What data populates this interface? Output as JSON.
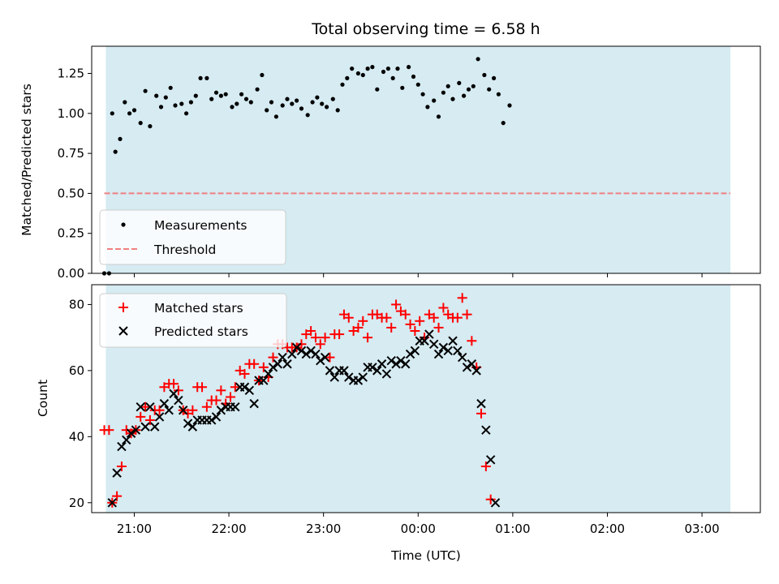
{
  "chart_data": [
    {
      "type": "scatter",
      "title": "Total observing time = 6.58 h",
      "ylabel": "Matched/Predicted stars",
      "xlabel": "",
      "ylim": [
        0,
        1.42
      ],
      "yticks": [
        0.0,
        0.25,
        0.5,
        0.75,
        1.0,
        1.25
      ],
      "yticklabels": [
        "0.00",
        "0.25",
        "0.50",
        "0.75",
        "1.00",
        "1.25"
      ],
      "xlim": [
        "20:33",
        "03:37"
      ],
      "xticks": [
        "21:00",
        "22:00",
        "23:00",
        "00:00",
        "01:00",
        "02:00",
        "03:00"
      ],
      "grid": false,
      "legend": "bottom-left",
      "observing_window": [
        "20:42",
        "03:18"
      ],
      "observing_window_color": "#add8e6",
      "threshold": {
        "name": "Threshold",
        "value": 0.5,
        "x_start": "20:41",
        "x_end": "03:18",
        "color": "#f08080",
        "style": "dashed"
      },
      "series": [
        {
          "name": "Measurements",
          "marker": "dot",
          "color": "#000000",
          "points": [
            [
              "20:41",
              0.0
            ],
            [
              "20:44",
              0.0
            ],
            [
              "20:46",
              1.0
            ],
            [
              "20:48",
              0.76
            ],
            [
              "20:51",
              0.84
            ],
            [
              "20:54",
              1.07
            ],
            [
              "20:57",
              1.0
            ],
            [
              "21:00",
              1.02
            ],
            [
              "21:04",
              0.94
            ],
            [
              "21:07",
              1.14
            ],
            [
              "21:10",
              0.92
            ],
            [
              "21:14",
              1.11
            ],
            [
              "21:17",
              1.04
            ],
            [
              "21:20",
              1.1
            ],
            [
              "21:23",
              1.16
            ],
            [
              "21:26",
              1.05
            ],
            [
              "21:30",
              1.06
            ],
            [
              "21:33",
              1.0
            ],
            [
              "21:36",
              1.07
            ],
            [
              "21:39",
              1.11
            ],
            [
              "21:42",
              1.22
            ],
            [
              "21:46",
              1.22
            ],
            [
              "21:49",
              1.09
            ],
            [
              "21:52",
              1.13
            ],
            [
              "21:55",
              1.11
            ],
            [
              "21:58",
              1.12
            ],
            [
              "22:02",
              1.04
            ],
            [
              "22:05",
              1.06
            ],
            [
              "22:08",
              1.12
            ],
            [
              "22:11",
              1.09
            ],
            [
              "22:14",
              1.07
            ],
            [
              "22:18",
              1.15
            ],
            [
              "22:21",
              1.24
            ],
            [
              "22:24",
              1.02
            ],
            [
              "22:27",
              1.07
            ],
            [
              "22:30",
              0.98
            ],
            [
              "22:34",
              1.05
            ],
            [
              "22:37",
              1.09
            ],
            [
              "22:40",
              1.06
            ],
            [
              "22:43",
              1.08
            ],
            [
              "22:46",
              1.03
            ],
            [
              "22:50",
              0.99
            ],
            [
              "22:53",
              1.07
            ],
            [
              "22:56",
              1.1
            ],
            [
              "22:59",
              1.06
            ],
            [
              "23:02",
              1.04
            ],
            [
              "23:06",
              1.09
            ],
            [
              "23:09",
              1.02
            ],
            [
              "23:12",
              1.18
            ],
            [
              "23:15",
              1.22
            ],
            [
              "23:18",
              1.28
            ],
            [
              "23:22",
              1.25
            ],
            [
              "23:25",
              1.24
            ],
            [
              "23:28",
              1.28
            ],
            [
              "23:31",
              1.29
            ],
            [
              "23:34",
              1.15
            ],
            [
              "23:38",
              1.26
            ],
            [
              "23:41",
              1.28
            ],
            [
              "23:44",
              1.22
            ],
            [
              "23:47",
              1.28
            ],
            [
              "23:50",
              1.16
            ],
            [
              "23:54",
              1.29
            ],
            [
              "23:57",
              1.23
            ],
            [
              "00:00",
              1.18
            ],
            [
              "00:03",
              1.12
            ],
            [
              "00:06",
              1.04
            ],
            [
              "00:10",
              1.08
            ],
            [
              "00:13",
              0.98
            ],
            [
              "00:16",
              1.13
            ],
            [
              "00:19",
              1.17
            ],
            [
              "00:22",
              1.09
            ],
            [
              "00:26",
              1.19
            ],
            [
              "00:29",
              1.11
            ],
            [
              "00:32",
              1.15
            ],
            [
              "00:35",
              1.17
            ],
            [
              "00:38",
              1.34
            ],
            [
              "00:42",
              1.24
            ],
            [
              "00:45",
              1.15
            ],
            [
              "00:48",
              1.22
            ],
            [
              "00:51",
              1.12
            ],
            [
              "00:54",
              0.94
            ],
            [
              "00:58",
              1.05
            ]
          ]
        }
      ]
    },
    {
      "type": "scatter",
      "title": "",
      "ylabel": "Count",
      "xlabel": "Time (UTC)",
      "ylim": [
        17,
        86
      ],
      "yticks": [
        20,
        40,
        60,
        80
      ],
      "yticklabels": [
        "20",
        "40",
        "60",
        "80"
      ],
      "xlim": [
        "20:33",
        "03:37"
      ],
      "xticks": [
        "21:00",
        "22:00",
        "23:00",
        "00:00",
        "01:00",
        "02:00",
        "03:00"
      ],
      "xticklabels": [
        "21:00",
        "22:00",
        "23:00",
        "00:00",
        "01:00",
        "02:00",
        "03:00"
      ],
      "grid": false,
      "legend": "top-left",
      "observing_window": [
        "20:42",
        "03:18"
      ],
      "observing_window_color": "#add8e6",
      "series": [
        {
          "name": "Matched stars",
          "marker": "plus",
          "color": "#ff0000",
          "points": [
            [
              "20:41",
              42
            ],
            [
              "20:44",
              42
            ],
            [
              "20:46",
              20
            ],
            [
              "20:49",
              22
            ],
            [
              "20:52",
              31
            ],
            [
              "20:55",
              42
            ],
            [
              "20:58",
              41
            ],
            [
              "21:01",
              42
            ],
            [
              "21:04",
              46
            ],
            [
              "21:07",
              49
            ],
            [
              "21:10",
              45
            ],
            [
              "21:13",
              48
            ],
            [
              "21:16",
              48
            ],
            [
              "21:19",
              55
            ],
            [
              "21:22",
              56
            ],
            [
              "21:25",
              56
            ],
            [
              "21:28",
              54
            ],
            [
              "21:31",
              48
            ],
            [
              "21:34",
              47
            ],
            [
              "21:37",
              48
            ],
            [
              "21:40",
              55
            ],
            [
              "21:43",
              55
            ],
            [
              "21:46",
              49
            ],
            [
              "21:49",
              51
            ],
            [
              "21:52",
              51
            ],
            [
              "21:55",
              54
            ],
            [
              "21:58",
              50
            ],
            [
              "22:01",
              52
            ],
            [
              "22:04",
              55
            ],
            [
              "22:07",
              60
            ],
            [
              "22:10",
              59
            ],
            [
              "22:13",
              62
            ],
            [
              "22:16",
              62
            ],
            [
              "22:19",
              57
            ],
            [
              "22:22",
              61
            ],
            [
              "22:25",
              58
            ],
            [
              "22:28",
              64
            ],
            [
              "22:31",
              68
            ],
            [
              "22:34",
              68
            ],
            [
              "22:37",
              67
            ],
            [
              "22:40",
              67
            ],
            [
              "22:43",
              67
            ],
            [
              "22:46",
              68
            ],
            [
              "22:49",
              71
            ],
            [
              "22:52",
              72
            ],
            [
              "22:55",
              70
            ],
            [
              "22:58",
              68
            ],
            [
              "23:01",
              70
            ],
            [
              "23:04",
              64
            ],
            [
              "23:07",
              71
            ],
            [
              "23:10",
              71
            ],
            [
              "23:13",
              77
            ],
            [
              "23:16",
              76
            ],
            [
              "23:19",
              72
            ],
            [
              "23:22",
              73
            ],
            [
              "23:25",
              75
            ],
            [
              "23:28",
              70
            ],
            [
              "23:31",
              77
            ],
            [
              "23:34",
              77
            ],
            [
              "23:37",
              76
            ],
            [
              "23:40",
              76
            ],
            [
              "23:43",
              73
            ],
            [
              "23:46",
              80
            ],
            [
              "23:49",
              78
            ],
            [
              "23:52",
              77
            ],
            [
              "23:55",
              74
            ],
            [
              "23:58",
              72
            ],
            [
              "00:01",
              75
            ],
            [
              "00:04",
              70
            ],
            [
              "00:07",
              77
            ],
            [
              "00:10",
              76
            ],
            [
              "00:13",
              73
            ],
            [
              "00:16",
              79
            ],
            [
              "00:19",
              77
            ],
            [
              "00:22",
              76
            ],
            [
              "00:25",
              76
            ],
            [
              "00:28",
              82
            ],
            [
              "00:31",
              77
            ],
            [
              "00:34",
              69
            ],
            [
              "00:37",
              61
            ],
            [
              "00:40",
              47
            ],
            [
              "00:43",
              31
            ],
            [
              "00:46",
              21
            ]
          ]
        },
        {
          "name": "Predicted stars",
          "marker": "x",
          "color": "#000000",
          "points": [
            [
              "20:46",
              20
            ],
            [
              "20:49",
              29
            ],
            [
              "20:52",
              37
            ],
            [
              "20:55",
              39
            ],
            [
              "20:58",
              41
            ],
            [
              "21:01",
              42
            ],
            [
              "21:04",
              49
            ],
            [
              "21:07",
              43
            ],
            [
              "21:10",
              49
            ],
            [
              "21:13",
              43
            ],
            [
              "21:16",
              46
            ],
            [
              "21:19",
              50
            ],
            [
              "21:22",
              48
            ],
            [
              "21:25",
              53
            ],
            [
              "21:28",
              51
            ],
            [
              "21:31",
              48
            ],
            [
              "21:34",
              44
            ],
            [
              "21:37",
              43
            ],
            [
              "21:40",
              45
            ],
            [
              "21:43",
              45
            ],
            [
              "21:46",
              45
            ],
            [
              "21:49",
              45
            ],
            [
              "21:52",
              46
            ],
            [
              "21:55",
              48
            ],
            [
              "21:58",
              49
            ],
            [
              "22:01",
              49
            ],
            [
              "22:04",
              49
            ],
            [
              "22:07",
              55
            ],
            [
              "22:10",
              55
            ],
            [
              "22:13",
              54
            ],
            [
              "22:16",
              50
            ],
            [
              "22:19",
              57
            ],
            [
              "22:22",
              57
            ],
            [
              "22:25",
              59
            ],
            [
              "22:28",
              61
            ],
            [
              "22:31",
              62
            ],
            [
              "22:34",
              64
            ],
            [
              "22:37",
              62
            ],
            [
              "22:40",
              65
            ],
            [
              "22:43",
              67
            ],
            [
              "22:46",
              66
            ],
            [
              "22:49",
              65
            ],
            [
              "22:52",
              66
            ],
            [
              "22:55",
              65
            ],
            [
              "22:58",
              63
            ],
            [
              "23:01",
              64
            ],
            [
              "23:04",
              60
            ],
            [
              "23:07",
              58
            ],
            [
              "23:10",
              60
            ],
            [
              "23:13",
              60
            ],
            [
              "23:16",
              58
            ],
            [
              "23:19",
              57
            ],
            [
              "23:22",
              57
            ],
            [
              "23:25",
              58
            ],
            [
              "23:28",
              61
            ],
            [
              "23:31",
              61
            ],
            [
              "23:34",
              60
            ],
            [
              "23:37",
              62
            ],
            [
              "23:40",
              59
            ],
            [
              "23:43",
              63
            ],
            [
              "23:46",
              62
            ],
            [
              "23:49",
              63
            ],
            [
              "23:52",
              62
            ],
            [
              "23:55",
              65
            ],
            [
              "23:58",
              66
            ],
            [
              "00:01",
              69
            ],
            [
              "00:04",
              69
            ],
            [
              "00:07",
              71
            ],
            [
              "00:10",
              68
            ],
            [
              "00:13",
              65
            ],
            [
              "00:16",
              67
            ],
            [
              "00:19",
              66
            ],
            [
              "00:22",
              69
            ],
            [
              "00:25",
              66
            ],
            [
              "00:28",
              64
            ],
            [
              "00:31",
              61
            ],
            [
              "00:34",
              62
            ],
            [
              "00:37",
              60
            ],
            [
              "00:40",
              50
            ],
            [
              "00:43",
              42
            ],
            [
              "00:46",
              33
            ],
            [
              "00:49",
              20
            ]
          ]
        }
      ]
    }
  ]
}
